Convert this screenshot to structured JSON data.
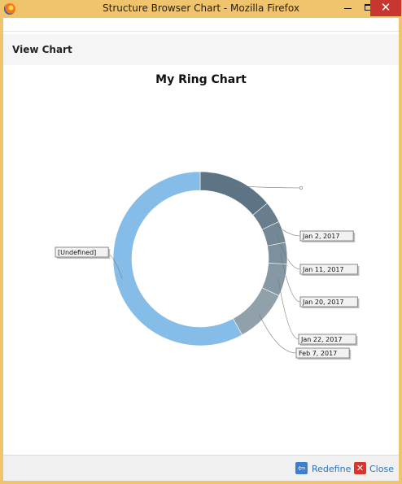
{
  "window": {
    "title": "Structure Browser Chart - Mozilla Firefox",
    "minimize_glyph": "",
    "close_glyph": "✕"
  },
  "header": {
    "title": "View Chart"
  },
  "chart_data": {
    "type": "ring",
    "title": "My Ring Chart",
    "slice_color": "#5c7484",
    "undefined_color": "#85bde8",
    "slices": [
      {
        "label": "",
        "share": 0.14
      },
      {
        "label": "Jan 2, 2017",
        "share": 0.04
      },
      {
        "label": "Jan 11, 2017",
        "share": 0.04
      },
      {
        "label": "Jan 20, 2017",
        "share": 0.04
      },
      {
        "label": "Jan 22, 2017",
        "share": 0.06
      },
      {
        "label": "Feb 7, 2017",
        "share": 0.1
      },
      {
        "label": "[Undefined]",
        "share": 0.58
      }
    ]
  },
  "footer": {
    "redefine_label": "Redefine",
    "close_label": "Close"
  }
}
